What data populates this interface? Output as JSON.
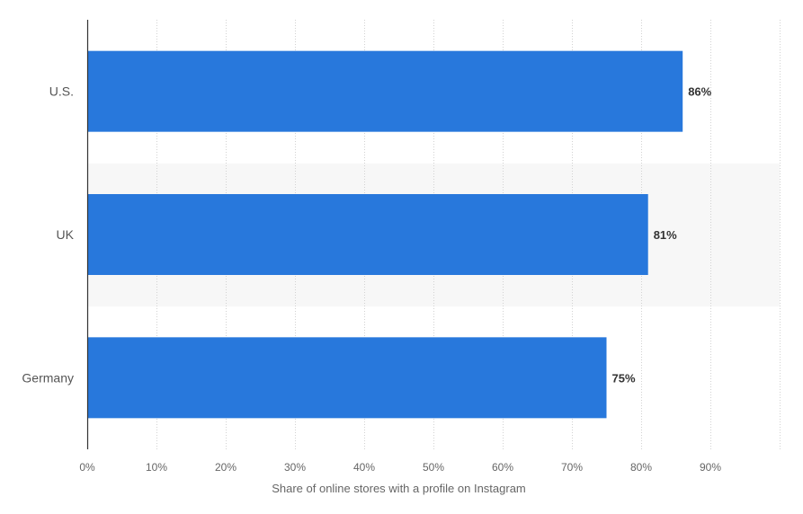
{
  "chart_data": {
    "type": "bar",
    "orientation": "horizontal",
    "categories": [
      "U.S.",
      "UK",
      "Germany"
    ],
    "values": [
      86,
      81,
      75
    ],
    "value_labels": [
      "86%",
      "81%",
      "75%"
    ],
    "xlabel": "Share of online stores with a profile on Instagram",
    "ylabel": "",
    "xlim": [
      0,
      100
    ],
    "x_ticks": [
      0,
      10,
      20,
      30,
      40,
      50,
      60,
      70,
      80,
      90
    ],
    "x_tick_labels": [
      "0%",
      "10%",
      "20%",
      "30%",
      "40%",
      "50%",
      "60%",
      "70%",
      "80%",
      "90%"
    ],
    "grid": "vertical dotted",
    "legend": "none",
    "colors": {
      "bar": "#2878dc",
      "band": "#f7f7f7",
      "grid": "#d2d2d2",
      "axis": "#333333"
    }
  }
}
